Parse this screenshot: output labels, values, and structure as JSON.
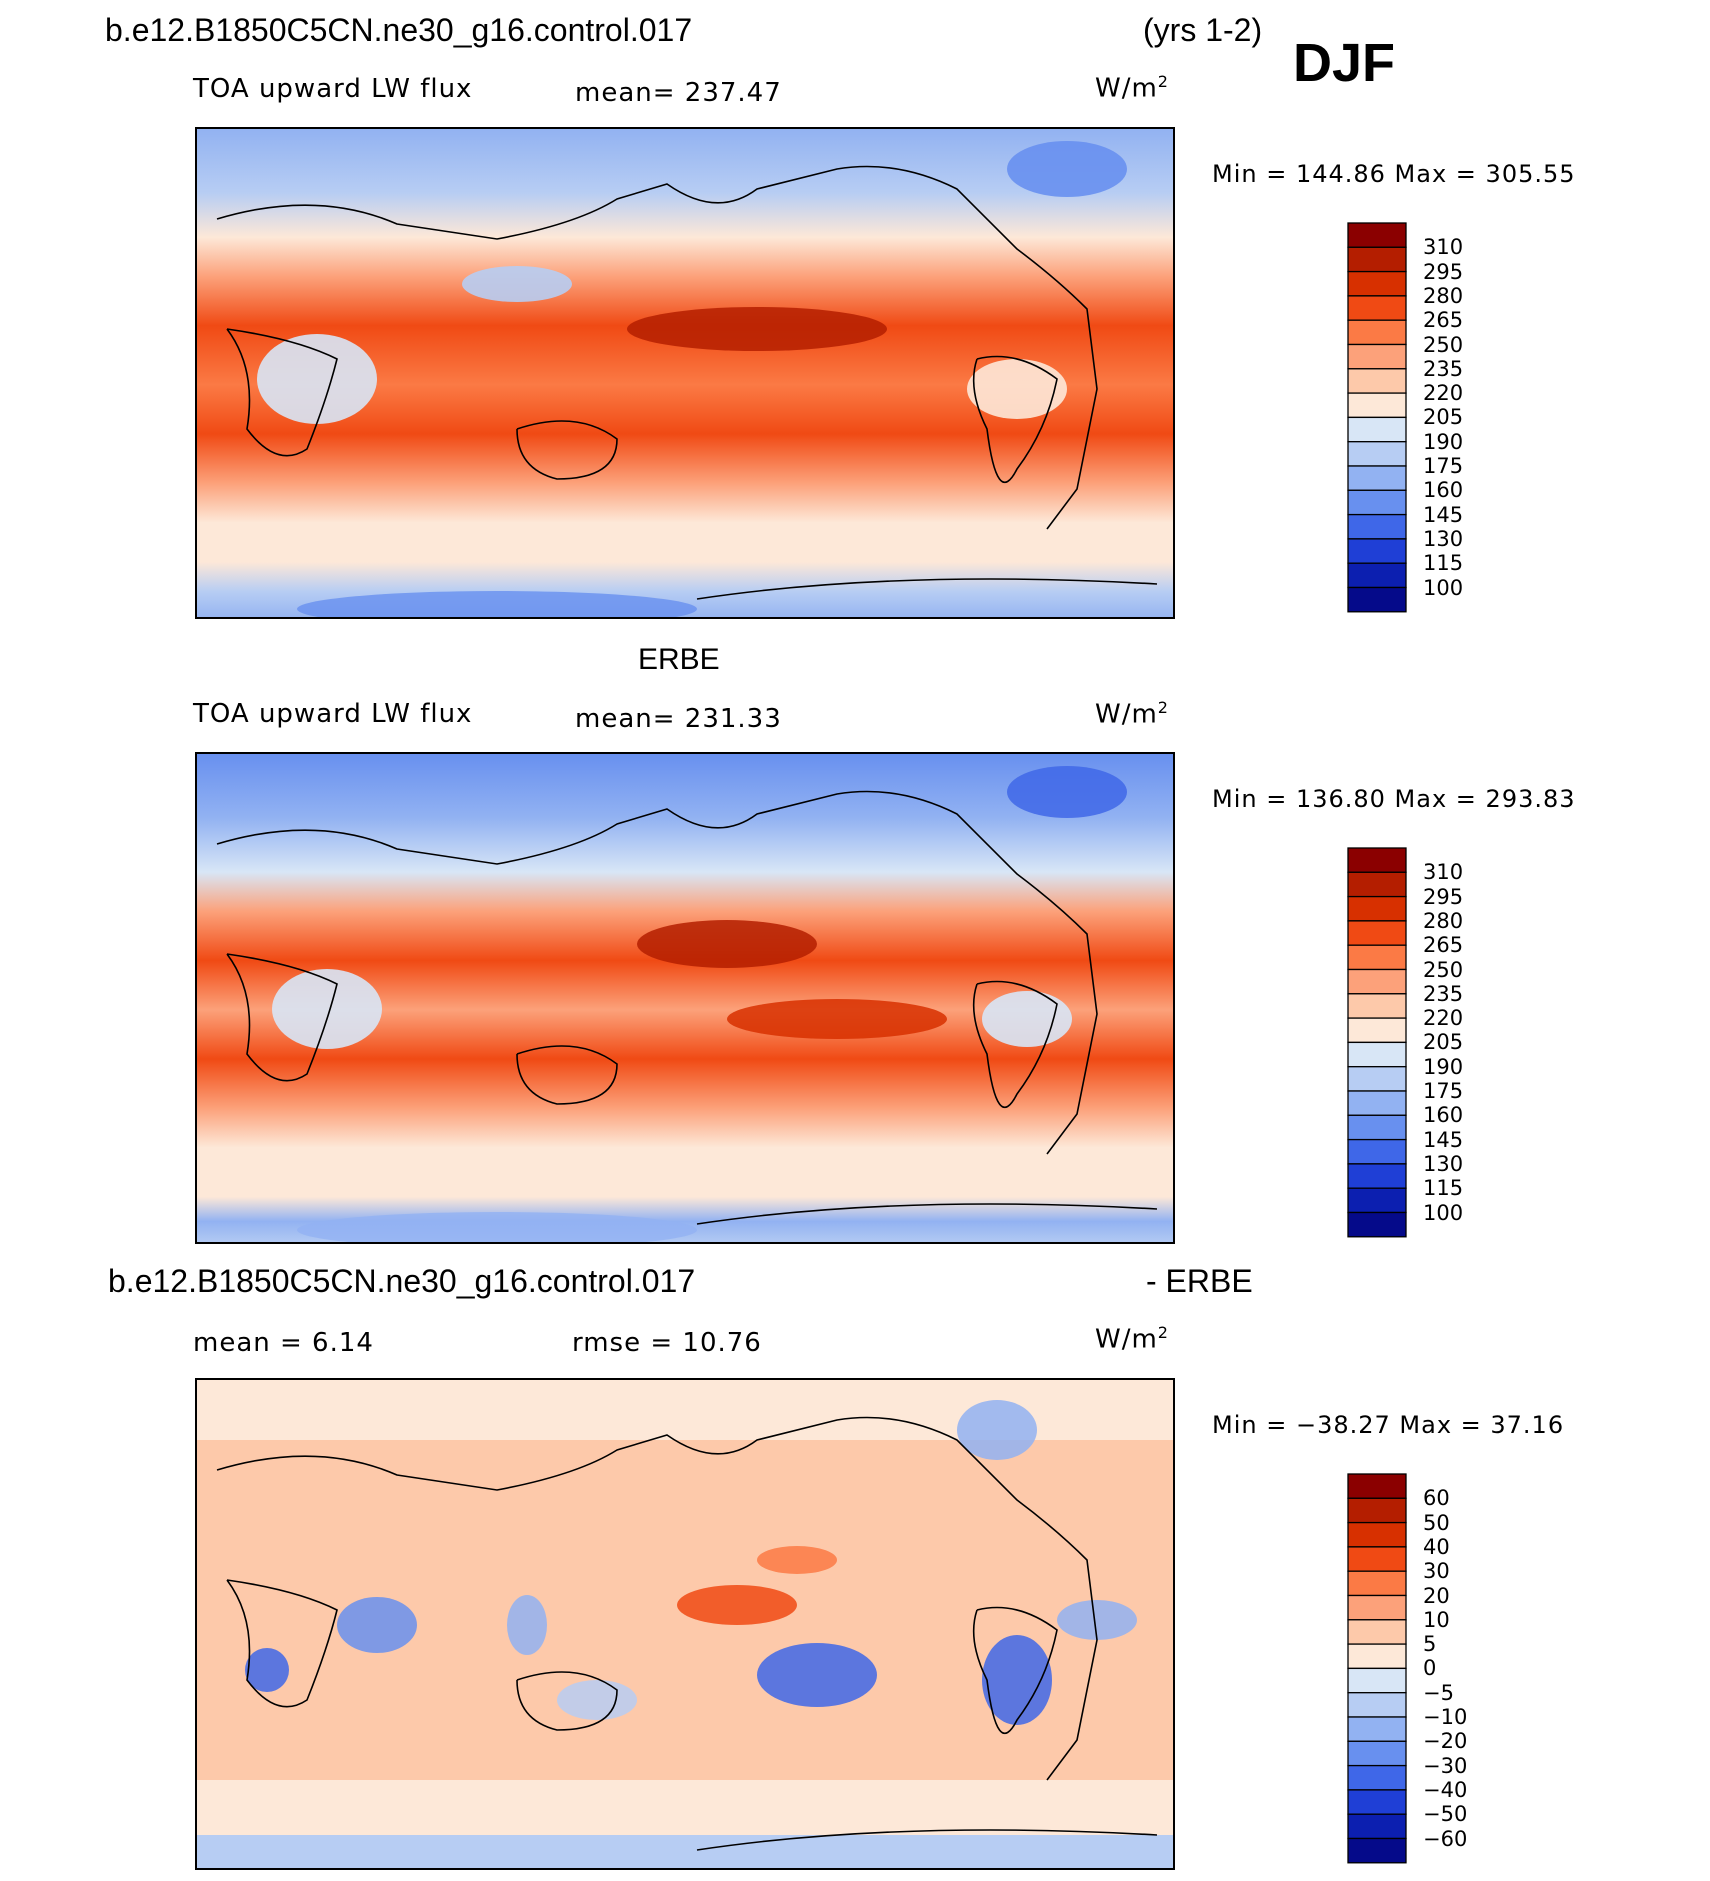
{
  "header": {
    "case_name": "b.e12.B1850C5CN.ne30_g16.control.017",
    "years": "(yrs 1-2)",
    "season": "DJF"
  },
  "panels": [
    {
      "id": "model",
      "title": "",
      "variable": "TOA upward LW flux",
      "mean_text": "mean= 237.47",
      "units": "W/m",
      "units_sup": "2",
      "minmax_text": "Min  =  144.86  Max  =  305.55",
      "colorbar": {
        "labels": [
          "310",
          "295",
          "280",
          "265",
          "250",
          "235",
          "220",
          "205",
          "190",
          "175",
          "160",
          "145",
          "130",
          "115",
          "100"
        ],
        "colors": [
          "#8b0000",
          "#b41e00",
          "#d73000",
          "#f04a14",
          "#fb7a45",
          "#fca17a",
          "#fdc9aa",
          "#fde8d8",
          "#d8e6f6",
          "#b7cdf3",
          "#92b2f2",
          "#6890ef",
          "#3f67e8",
          "#1f3fd6",
          "#0c1fb0",
          "#050a8a"
        ]
      },
      "map_description": "world map, Pacific centered"
    },
    {
      "id": "obs",
      "title": "ERBE",
      "variable": "TOA upward LW flux",
      "mean_text": "mean= 231.33",
      "units": "W/m",
      "units_sup": "2",
      "minmax_text": "Min  =  136.80  Max  =  293.83",
      "colorbar": {
        "labels": [
          "310",
          "295",
          "280",
          "265",
          "250",
          "235",
          "220",
          "205",
          "190",
          "175",
          "160",
          "145",
          "130",
          "115",
          "100"
        ],
        "colors": [
          "#8b0000",
          "#b41e00",
          "#d73000",
          "#f04a14",
          "#fb7a45",
          "#fca17a",
          "#fdc9aa",
          "#fde8d8",
          "#d8e6f6",
          "#b7cdf3",
          "#92b2f2",
          "#6890ef",
          "#3f67e8",
          "#1f3fd6",
          "#0c1fb0",
          "#050a8a"
        ]
      }
    },
    {
      "id": "diff",
      "title_left": "b.e12.B1850C5CN.ne30_g16.control.017",
      "title_right": "- ERBE",
      "mean_text": "mean =     6.14",
      "rmse_text": "rmse  =   10.76",
      "units": "W/m",
      "units_sup": "2",
      "minmax_text": "Min  = −38.27  Max  =   37.16",
      "colorbar": {
        "labels": [
          "60",
          "50",
          "40",
          "30",
          "20",
          "10",
          "5",
          "0",
          "−5",
          "−10",
          "−20",
          "−30",
          "−40",
          "−50",
          "−60"
        ],
        "colors": [
          "#8b0000",
          "#b41e00",
          "#d73000",
          "#f04a14",
          "#fb7a45",
          "#fca17a",
          "#fdc9aa",
          "#fde8d8",
          "#d8e6f6",
          "#b7cdf3",
          "#92b2f2",
          "#6890ef",
          "#3f67e8",
          "#1f3fd6",
          "#0c1fb0",
          "#050a8a"
        ]
      }
    }
  ]
}
